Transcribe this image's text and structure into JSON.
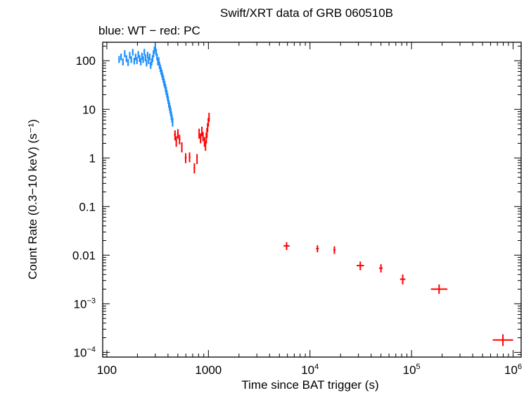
{
  "chart_data": {
    "type": "scatter",
    "title": "Swift/XRT data of GRB 060510B",
    "subtitle": "blue: WT − red: PC",
    "xlabel": "Time since BAT trigger (s)",
    "ylabel": "Count Rate (0.3−10 keV) (s⁻¹)",
    "xscale": "log",
    "yscale": "log",
    "xlim": [
      91,
      1200000
    ],
    "ylim": [
      8e-05,
      240
    ],
    "x_ticks": [
      {
        "value": 100,
        "label": "100",
        "sup": ""
      },
      {
        "value": 1000,
        "label": "1000",
        "sup": ""
      },
      {
        "value": 10000,
        "label": "10",
        "sup": "4"
      },
      {
        "value": 100000,
        "label": "10",
        "sup": "5"
      },
      {
        "value": 1000000,
        "label": "10",
        "sup": "6"
      }
    ],
    "y_ticks": [
      {
        "value": 100,
        "label": "100",
        "sup": ""
      },
      {
        "value": 10,
        "label": "10",
        "sup": ""
      },
      {
        "value": 1,
        "label": "1",
        "sup": ""
      },
      {
        "value": 0.1,
        "label": "0.1",
        "sup": ""
      },
      {
        "value": 0.01,
        "label": "0.01",
        "sup": ""
      },
      {
        "value": 0.001,
        "label": "10",
        "sup": "−3"
      },
      {
        "value": 0.0001,
        "label": "10",
        "sup": "−4"
      }
    ],
    "series": [
      {
        "name": "WT",
        "color": "#1e90ff",
        "points": [
          [
            132,
            105,
            90,
            125
          ],
          [
            138,
            120,
            102,
            140
          ],
          [
            144,
            95,
            80,
            112
          ],
          [
            150,
            140,
            118,
            165
          ],
          [
            156,
            110,
            94,
            130
          ],
          [
            162,
            92,
            78,
            108
          ],
          [
            168,
            130,
            110,
            152
          ],
          [
            174,
            105,
            90,
            124
          ],
          [
            180,
            150,
            128,
            175
          ],
          [
            186,
            98,
            84,
            115
          ],
          [
            192,
            120,
            102,
            140
          ],
          [
            198,
            100,
            85,
            118
          ],
          [
            204,
            135,
            115,
            158
          ],
          [
            210,
            110,
            94,
            130
          ],
          [
            216,
            95,
            80,
            112
          ],
          [
            222,
            125,
            106,
            146
          ],
          [
            228,
            105,
            90,
            124
          ],
          [
            234,
            150,
            128,
            176
          ],
          [
            240,
            115,
            98,
            135
          ],
          [
            246,
            90,
            76,
            106
          ],
          [
            252,
            130,
            110,
            152
          ],
          [
            258,
            100,
            85,
            118
          ],
          [
            264,
            120,
            102,
            140
          ],
          [
            270,
            80,
            68,
            95
          ],
          [
            276,
            95,
            80,
            112
          ],
          [
            282,
            110,
            94,
            130
          ],
          [
            288,
            140,
            118,
            165
          ],
          [
            294,
            165,
            140,
            194
          ],
          [
            300,
            190,
            160,
            225
          ],
          [
            306,
            150,
            128,
            176
          ],
          [
            312,
            120,
            102,
            140
          ],
          [
            318,
            95,
            80,
            112
          ],
          [
            324,
            100,
            85,
            118
          ],
          [
            330,
            80,
            68,
            95
          ],
          [
            336,
            70,
            59,
            83
          ],
          [
            342,
            62,
            52,
            73
          ],
          [
            348,
            55,
            46,
            65
          ],
          [
            354,
            48,
            40,
            57
          ],
          [
            360,
            42,
            35,
            50
          ],
          [
            366,
            36,
            30,
            43
          ],
          [
            372,
            32,
            27,
            38
          ],
          [
            378,
            28,
            23,
            33
          ],
          [
            384,
            24,
            20,
            29
          ],
          [
            390,
            21,
            17.5,
            25
          ],
          [
            396,
            18,
            15,
            21.5
          ],
          [
            402,
            15.5,
            13,
            18.5
          ],
          [
            408,
            13,
            10.8,
            15.5
          ],
          [
            414,
            11.5,
            9.5,
            13.8
          ],
          [
            420,
            10,
            8.2,
            12
          ],
          [
            426,
            8.8,
            7.2,
            10.6
          ],
          [
            432,
            7.5,
            6.1,
            9
          ],
          [
            438,
            6.5,
            5.3,
            7.8
          ],
          [
            444,
            5.5,
            4.4,
            6.7
          ]
        ]
      },
      {
        "name": "PC",
        "color": "#ff0000",
        "points": [
          [
            458,
            3.0,
            480,
            2.3,
            3.7
          ],
          [
            475,
            2.2,
            490,
            1.7,
            2.8
          ],
          [
            492,
            3.2,
            510,
            2.5,
            3.9
          ],
          [
            510,
            2.4,
            530,
            1.9,
            3.0
          ],
          [
            540,
            1.7,
            555,
            1.3,
            2.1
          ],
          [
            585,
            1.0,
            610,
            0.78,
            1.25
          ],
          [
            640,
            1.05,
            665,
            0.82,
            1.3
          ],
          [
            715,
            0.62,
            740,
            0.48,
            0.78
          ],
          [
            765,
            0.95,
            780,
            0.75,
            1.2
          ],
          [
            800,
            3.2,
            820,
            2.5,
            4.0
          ],
          [
            825,
            2.6,
            850,
            2.0,
            3.2
          ],
          [
            855,
            3.6,
            870,
            2.8,
            4.4
          ],
          [
            875,
            2.8,
            895,
            2.2,
            3.4
          ],
          [
            905,
            2.2,
            925,
            1.7,
            2.7
          ],
          [
            928,
            1.8,
            945,
            1.4,
            2.2
          ],
          [
            945,
            2.6,
            962,
            2.0,
            3.3
          ],
          [
            960,
            3.3,
            975,
            2.6,
            4.1
          ],
          [
            975,
            4.3,
            990,
            3.4,
            5.2
          ],
          [
            990,
            5.5,
            1005,
            4.4,
            6.7
          ],
          [
            1005,
            7.0,
            1025,
            5.6,
            8.5
          ],
          [
            5500,
            0.0155,
            6300,
            0.0128,
            0.0185
          ],
          [
            11500,
            0.0136,
            12200,
            0.0115,
            0.016
          ],
          [
            17000,
            0.0128,
            17800,
            0.0106,
            0.0152
          ],
          [
            28800,
            0.0061,
            34000,
            0.0049,
            0.0074
          ],
          [
            48000,
            0.0054,
            52000,
            0.0044,
            0.0065
          ],
          [
            77000,
            0.0032,
            87000,
            0.0025,
            0.004
          ],
          [
            155000,
            0.002,
            225000,
            0.0016,
            0.0025
          ],
          [
            630000,
            0.00018,
            1000000,
            0.000135,
            0.000235
          ]
        ]
      }
    ]
  }
}
